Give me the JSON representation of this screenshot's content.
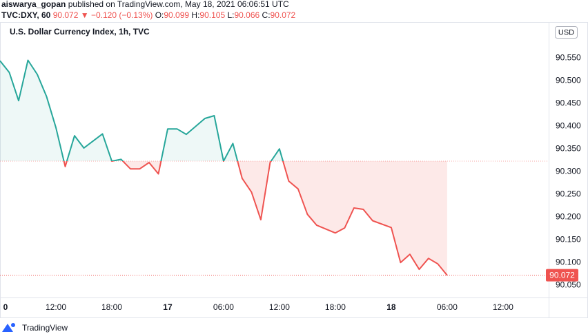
{
  "header": {
    "author": "aiswarya_gopan",
    "published": "published on TradingView.com, May 18, 2021 06:06:51 UTC"
  },
  "quote": {
    "symbol": "TVC:DXY, 60",
    "last": "90.072",
    "change": "▼ −0.120 (−0.13%)",
    "ohlc": [
      {
        "label": "O:",
        "value": "90.099"
      },
      {
        "label": "H:",
        "value": "90.105"
      },
      {
        "label": "L:",
        "value": "90.066"
      },
      {
        "label": "C:",
        "value": "90.072"
      }
    ]
  },
  "footer": {
    "brand": "TradingView"
  },
  "chart_data": {
    "type": "line",
    "title": "U.S. Dollar Currency Index, 1h, TVC",
    "currency": "USD",
    "x": [
      6,
      7,
      8,
      9,
      10,
      11,
      12,
      13,
      14,
      15,
      17,
      18,
      19,
      20,
      21,
      22,
      23,
      24,
      25,
      26,
      28,
      29,
      30,
      31,
      32,
      33,
      34,
      35,
      36,
      37,
      38,
      39,
      40,
      42,
      43,
      44,
      45,
      46,
      48,
      49,
      50,
      51,
      52,
      53,
      54
    ],
    "values": [
      90.544,
      90.518,
      90.456,
      90.545,
      90.514,
      90.465,
      90.397,
      90.311,
      90.379,
      90.352,
      90.383,
      90.323,
      90.327,
      90.306,
      90.306,
      90.32,
      90.295,
      90.394,
      90.394,
      90.382,
      90.417,
      90.423,
      90.323,
      90.362,
      90.285,
      90.255,
      90.194,
      90.32,
      90.35,
      90.279,
      90.262,
      90.206,
      90.182,
      90.165,
      90.176,
      90.22,
      90.217,
      90.192,
      90.177,
      90.1,
      90.118,
      90.085,
      90.109,
      90.097,
      90.072
    ],
    "baseline": 90.323,
    "up_color": "#26a69a",
    "down_color": "#ef5350",
    "last_price_line": true,
    "xlim": [
      6,
      64.9
    ],
    "xticks": [
      {
        "value": 6,
        "label": "0"
      },
      {
        "value": 12,
        "label": "12:00"
      },
      {
        "value": 18,
        "label": "18:00"
      },
      {
        "value": 24,
        "label": "17"
      },
      {
        "value": 30,
        "label": "06:00"
      },
      {
        "value": 36,
        "label": "12:00"
      },
      {
        "value": 42,
        "label": "18:00"
      },
      {
        "value": 48,
        "label": "18"
      },
      {
        "value": 54,
        "label": "06:00"
      },
      {
        "value": 60,
        "label": "12:00"
      }
    ],
    "ylim": [
      90.023,
      90.62
    ],
    "yticks": [
      {
        "value": 90.05,
        "label": "90.050"
      },
      {
        "value": 90.1,
        "label": "90.100"
      },
      {
        "value": 90.15,
        "label": "90.150"
      },
      {
        "value": 90.2,
        "label": "90.200"
      },
      {
        "value": 90.25,
        "label": "90.250"
      },
      {
        "value": 90.3,
        "label": "90.300"
      },
      {
        "value": 90.35,
        "label": "90.350"
      },
      {
        "value": 90.4,
        "label": "90.400"
      },
      {
        "value": 90.45,
        "label": "90.450"
      },
      {
        "value": 90.5,
        "label": "90.500"
      },
      {
        "value": 90.55,
        "label": "90.550"
      }
    ]
  }
}
